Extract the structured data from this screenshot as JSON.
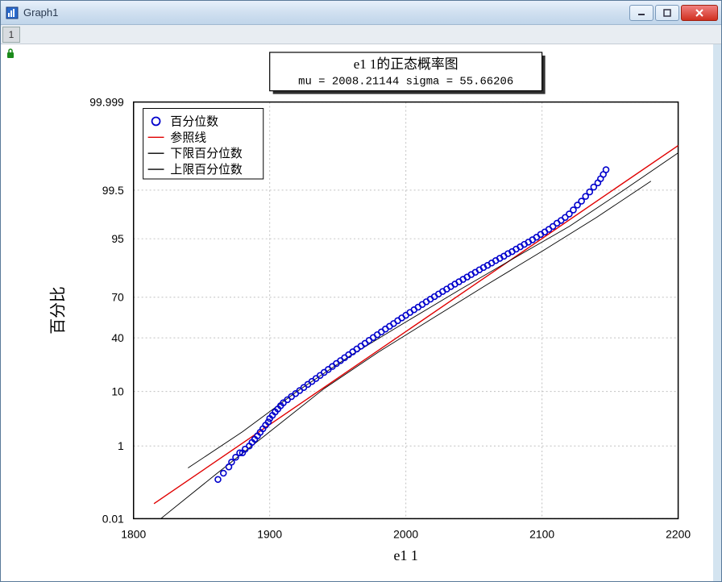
{
  "window": {
    "title": "Graph1"
  },
  "tab": {
    "label": "1"
  },
  "chart": {
    "type": "probability-plot",
    "title_line1": "e1 1的正态概率图",
    "title_line2": "mu = 2008.21144  sigma = 55.66206",
    "xlabel": "e1 1",
    "ylabel": "百分比",
    "xlim": [
      1800,
      2200
    ],
    "xticks": [
      1800,
      1900,
      2000,
      2100,
      2200
    ],
    "yticks_probit": [
      0.01,
      1,
      10,
      40,
      70,
      95,
      99.5,
      99.999
    ],
    "ytick_labels": [
      "0.01",
      "1",
      "10",
      "40",
      "70",
      "95",
      "99.5",
      "99.999"
    ],
    "legend": {
      "items": [
        {
          "marker": "circle",
          "color": "#0000cc",
          "label": "百分位数"
        },
        {
          "marker": "line",
          "color": "#e00000",
          "label": "参照线"
        },
        {
          "marker": "line",
          "color": "#000000",
          "label": "下限百分位数"
        },
        {
          "marker": "line",
          "color": "#000000",
          "label": "上限百分位数"
        }
      ]
    },
    "colors": {
      "background": "#ffffff",
      "plot_border": "#000000",
      "grid": "#c0c0c0",
      "marker": "#0000cc",
      "ref_line": "#e00000",
      "bound_line": "#000000",
      "titlebox_fill": "#ffffff",
      "titlebox_border": "#000000",
      "titlebox_shadow": "#303030"
    },
    "marker_radius": 3.5,
    "line_width": 1.4,
    "data_points": [
      [
        1862,
        0.15
      ],
      [
        1866,
        0.22
      ],
      [
        1870,
        0.32
      ],
      [
        1872,
        0.42
      ],
      [
        1875,
        0.55
      ],
      [
        1878,
        0.7
      ],
      [
        1880,
        0.7
      ],
      [
        1882,
        0.85
      ],
      [
        1885,
        1.0
      ],
      [
        1887,
        1.2
      ],
      [
        1889,
        1.4
      ],
      [
        1891,
        1.65
      ],
      [
        1893,
        1.95
      ],
      [
        1895,
        2.3
      ],
      [
        1897,
        2.7
      ],
      [
        1899,
        3.1
      ],
      [
        1900,
        3.6
      ],
      [
        1902,
        4.1
      ],
      [
        1904,
        4.7
      ],
      [
        1906,
        5.3
      ],
      [
        1908,
        6.0
      ],
      [
        1910,
        6.7
      ],
      [
        1913,
        7.5
      ],
      [
        1916,
        8.4
      ],
      [
        1919,
        9.3
      ],
      [
        1922,
        10.3
      ],
      [
        1925,
        11.4
      ],
      [
        1928,
        12.6
      ],
      [
        1931,
        13.8
      ],
      [
        1934,
        15.1
      ],
      [
        1937,
        16.5
      ],
      [
        1940,
        18.0
      ],
      [
        1943,
        19.5
      ],
      [
        1946,
        21.1
      ],
      [
        1949,
        22.8
      ],
      [
        1952,
        24.5
      ],
      [
        1955,
        26.3
      ],
      [
        1958,
        28.2
      ],
      [
        1961,
        30.1
      ],
      [
        1964,
        32.0
      ],
      [
        1967,
        34.0
      ],
      [
        1970,
        36.0
      ],
      [
        1973,
        38.1
      ],
      [
        1976,
        40.2
      ],
      [
        1979,
        42.3
      ],
      [
        1982,
        44.4
      ],
      [
        1985,
        46.6
      ],
      [
        1988,
        48.7
      ],
      [
        1991,
        50.8
      ],
      [
        1994,
        53.0
      ],
      [
        1997,
        55.1
      ],
      [
        2000,
        57.1
      ],
      [
        2003,
        59.2
      ],
      [
        2006,
        61.2
      ],
      [
        2009,
        63.1
      ],
      [
        2012,
        65.0
      ],
      [
        2015,
        66.9
      ],
      [
        2018,
        68.7
      ],
      [
        2021,
        70.4
      ],
      [
        2024,
        72.1
      ],
      [
        2027,
        73.7
      ],
      [
        2030,
        75.2
      ],
      [
        2033,
        76.7
      ],
      [
        2036,
        78.1
      ],
      [
        2039,
        79.4
      ],
      [
        2042,
        80.7
      ],
      [
        2045,
        81.9
      ],
      [
        2048,
        83.1
      ],
      [
        2051,
        84.2
      ],
      [
        2054,
        85.3
      ],
      [
        2057,
        86.3
      ],
      [
        2060,
        87.2
      ],
      [
        2063,
        88.1
      ],
      [
        2066,
        89.0
      ],
      [
        2069,
        89.8
      ],
      [
        2072,
        90.5
      ],
      [
        2075,
        91.3
      ],
      [
        2078,
        91.9
      ],
      [
        2081,
        92.6
      ],
      [
        2084,
        93.2
      ],
      [
        2087,
        93.8
      ],
      [
        2090,
        94.3
      ],
      [
        2093,
        94.8
      ],
      [
        2096,
        95.3
      ],
      [
        2099,
        95.8
      ],
      [
        2102,
        96.2
      ],
      [
        2105,
        96.6
      ],
      [
        2108,
        97.0
      ],
      [
        2111,
        97.4
      ],
      [
        2114,
        97.7
      ],
      [
        2117,
        98.0
      ],
      [
        2120,
        98.3
      ],
      [
        2123,
        98.6
      ],
      [
        2126,
        98.9
      ],
      [
        2129,
        99.1
      ],
      [
        2132,
        99.3
      ],
      [
        2135,
        99.45
      ],
      [
        2138,
        99.58
      ],
      [
        2141,
        99.67
      ],
      [
        2143,
        99.74
      ],
      [
        2145,
        99.8
      ],
      [
        2147,
        99.85
      ]
    ],
    "ref_line_pts": [
      [
        1815,
        0.03
      ],
      [
        2200,
        99.97
      ]
    ],
    "lower_bound_pts": [
      [
        1820,
        0.01
      ],
      [
        1860,
        0.2
      ],
      [
        1900,
        2.0
      ],
      [
        1940,
        11
      ],
      [
        1980,
        30
      ],
      [
        2020,
        55
      ],
      [
        2060,
        78
      ],
      [
        2100,
        92
      ],
      [
        2140,
        98.0
      ],
      [
        2180,
        99.7
      ]
    ],
    "upper_bound_pts": [
      [
        1840,
        0.3
      ],
      [
        1880,
        2.0
      ],
      [
        1920,
        10
      ],
      [
        1960,
        28
      ],
      [
        2000,
        52
      ],
      [
        2040,
        75
      ],
      [
        2080,
        90
      ],
      [
        2120,
        97
      ],
      [
        2160,
        99.5
      ],
      [
        2200,
        99.95
      ]
    ]
  }
}
